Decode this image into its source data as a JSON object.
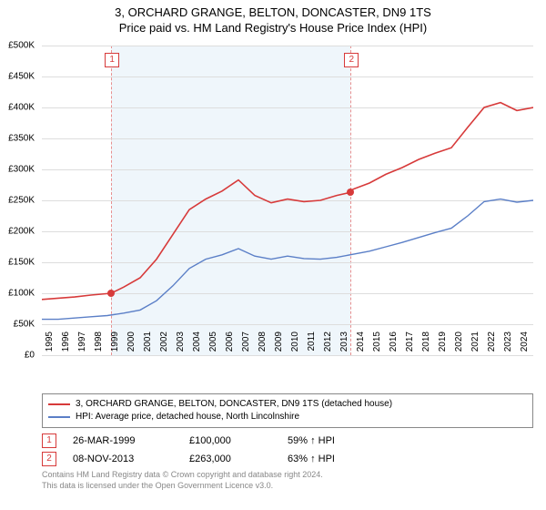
{
  "title_line1": "3, ORCHARD GRANGE, BELTON, DONCASTER, DN9 1TS",
  "title_line2": "Price paid vs. HM Land Registry's House Price Index (HPI)",
  "title_fontsize": 13,
  "background_color": "#ffffff",
  "text_color": "#000000",
  "grid_color": "#dddddd",
  "axis_font_size": 10,
  "chart": {
    "type": "line",
    "x_min": 1995,
    "x_max": 2025,
    "y_min": 0,
    "y_max": 500000,
    "y_ticks": [
      0,
      50000,
      100000,
      150000,
      200000,
      250000,
      300000,
      350000,
      400000,
      450000,
      500000
    ],
    "y_tick_labels": [
      "£0",
      "£50K",
      "£100K",
      "£150K",
      "£200K",
      "£250K",
      "£300K",
      "£350K",
      "£400K",
      "£450K",
      "£500K"
    ],
    "x_ticks": [
      1995,
      1996,
      1997,
      1998,
      1999,
      2000,
      2001,
      2002,
      2003,
      2004,
      2005,
      2006,
      2007,
      2008,
      2009,
      2010,
      2011,
      2012,
      2013,
      2014,
      2015,
      2016,
      2017,
      2018,
      2019,
      2020,
      2021,
      2022,
      2023,
      2024
    ],
    "shade_color": "#eff6fb",
    "shade_from": 1999.23,
    "shade_to": 2013.85,
    "dash_color": "#e89090",
    "series": [
      {
        "name": "property",
        "label": "3, ORCHARD GRANGE, BELTON, DONCASTER, DN9 1TS (detached house)",
        "color": "#d73a3a",
        "line_width": 1.6,
        "data": [
          [
            1995,
            90000
          ],
          [
            1996,
            92000
          ],
          [
            1997,
            94000
          ],
          [
            1998,
            97000
          ],
          [
            1999.23,
            100000
          ],
          [
            2000,
            110000
          ],
          [
            2001,
            125000
          ],
          [
            2002,
            155000
          ],
          [
            2003,
            195000
          ],
          [
            2004,
            235000
          ],
          [
            2005,
            252000
          ],
          [
            2006,
            265000
          ],
          [
            2007,
            283000
          ],
          [
            2008,
            258000
          ],
          [
            2009,
            246000
          ],
          [
            2010,
            252000
          ],
          [
            2011,
            248000
          ],
          [
            2012,
            250000
          ],
          [
            2013,
            258000
          ],
          [
            2013.85,
            263000
          ],
          [
            2014,
            268000
          ],
          [
            2015,
            278000
          ],
          [
            2016,
            292000
          ],
          [
            2017,
            303000
          ],
          [
            2018,
            316000
          ],
          [
            2019,
            326000
          ],
          [
            2020,
            335000
          ],
          [
            2021,
            368000
          ],
          [
            2022,
            400000
          ],
          [
            2023,
            408000
          ],
          [
            2024,
            395000
          ],
          [
            2025,
            400000
          ]
        ]
      },
      {
        "name": "hpi",
        "label": "HPI: Average price, detached house, North Lincolnshire",
        "color": "#5b7fc7",
        "line_width": 1.4,
        "data": [
          [
            1995,
            58000
          ],
          [
            1996,
            58000
          ],
          [
            1997,
            60000
          ],
          [
            1998,
            62000
          ],
          [
            1999,
            64000
          ],
          [
            2000,
            68000
          ],
          [
            2001,
            73000
          ],
          [
            2002,
            88000
          ],
          [
            2003,
            112000
          ],
          [
            2004,
            140000
          ],
          [
            2005,
            155000
          ],
          [
            2006,
            162000
          ],
          [
            2007,
            172000
          ],
          [
            2008,
            160000
          ],
          [
            2009,
            155000
          ],
          [
            2010,
            160000
          ],
          [
            2011,
            156000
          ],
          [
            2012,
            155000
          ],
          [
            2013,
            158000
          ],
          [
            2014,
            163000
          ],
          [
            2015,
            168000
          ],
          [
            2016,
            175000
          ],
          [
            2017,
            182000
          ],
          [
            2018,
            190000
          ],
          [
            2019,
            198000
          ],
          [
            2020,
            205000
          ],
          [
            2021,
            225000
          ],
          [
            2022,
            248000
          ],
          [
            2023,
            252000
          ],
          [
            2024,
            247000
          ],
          [
            2025,
            250000
          ]
        ]
      }
    ],
    "markers": [
      {
        "n": "1",
        "x": 1999.23,
        "y": 100000,
        "color": "#d73a3a"
      },
      {
        "n": "2",
        "x": 2013.85,
        "y": 263000,
        "color": "#d73a3a"
      }
    ]
  },
  "legend_border_color": "#888888",
  "transactions": [
    {
      "n": "1",
      "date": "26-MAR-1999",
      "price": "£100,000",
      "hpi": "59% ↑ HPI",
      "box_color": "#d73a3a"
    },
    {
      "n": "2",
      "date": "08-NOV-2013",
      "price": "£263,000",
      "hpi": "63% ↑ HPI",
      "box_color": "#d73a3a"
    }
  ],
  "footer_line1": "Contains HM Land Registry data © Crown copyright and database right 2024.",
  "footer_line2": "This data is licensed under the Open Government Licence v3.0.",
  "footer_color": "#888888"
}
